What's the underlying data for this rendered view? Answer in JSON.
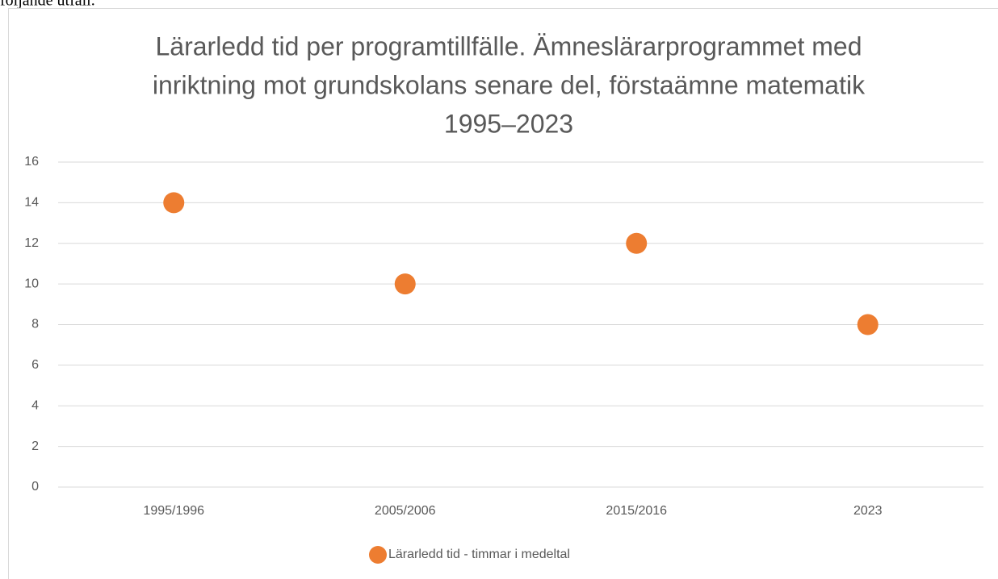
{
  "page_text": "följande utfall.",
  "chart_data": {
    "type": "scatter",
    "title": [
      "Lärarledd tid per programtillfälle. Ämneslärarprogrammet med",
      "inriktning mot grundskolans senare del, förstaämne matematik",
      "1995–2023"
    ],
    "categories": [
      "1995/1996",
      "2005/2006",
      "2015/2016",
      "2023"
    ],
    "series": [
      {
        "name": "Lärarledd tid - timmar i medeltal",
        "color": "#ed7d31",
        "values": [
          14,
          10,
          12,
          8
        ]
      }
    ],
    "ylim": [
      0,
      16
    ],
    "yticks": [
      0,
      2,
      4,
      6,
      8,
      10,
      12,
      14,
      16
    ],
    "grid": true,
    "legend": "bottom"
  }
}
